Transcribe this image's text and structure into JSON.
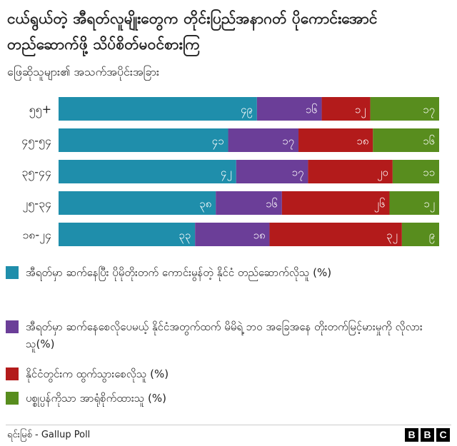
{
  "title": "ငယ်ရွယ်တဲ့ အီရတ်လူမျိုးတွေက တိုင်းပြည်အနာဂတ် ပိုကောင်းအောင် တည်ဆောက်ဖို့ သိပ်စိတ်မဝင်စားကြ",
  "subtitle": "ဖြေဆိုသူများ၏ အသက်အပိုင်းအခြား",
  "colors": [
    "#1f8eab",
    "#6b3e98",
    "#b31b1b",
    "#588d1e"
  ],
  "chart_data": {
    "type": "bar",
    "orientation": "horizontal",
    "stacked": true,
    "categories": [
      "၅၅+",
      "၄၅-၅၄",
      "၃၅-၄၄",
      "၂၅-၃၄",
      "၁၈-၂၄"
    ],
    "series": [
      {
        "name": "အီရတ်မှာ ဆက်နေပြီး ပိုမိုတိုးတက် ကောင်းမွန်တဲ့ နိုင်ငံ တည်ဆောက်လိုသူ (%)",
        "values": [
          49,
          41,
          42,
          38,
          33
        ]
      },
      {
        "name": "အီရတ်မှာ ဆက်နေစေလိုပေမယ့် နိုင်ငံအတွက်ထက် မိမိရဲ့ ဘဝ အခြေအနေ တိုးတက်မြင့်မားမှုကို လိုလားသူ(%)",
        "values": [
          16,
          17,
          17,
          16,
          18
        ]
      },
      {
        "name": "နိုင်ငံတွင်းက ထွက်သွားစေလိုသူ (%)",
        "values": [
          12,
          18,
          20,
          26,
          32
        ]
      },
      {
        "name": "ပစ္စုပ္ပန်ကိုသာ အာရုံစိုက်ထားသူ (%)",
        "values": [
          17,
          16,
          11,
          12,
          9
        ]
      }
    ],
    "data_labels": [
      [
        "၄၉",
        "၁၆",
        "၁၂",
        "၁၇"
      ],
      [
        "၄၁",
        "၁၇",
        "၁၈",
        "၁၆"
      ],
      [
        "၄၂",
        "၁၇",
        "၂၀",
        "၁၁"
      ],
      [
        "၃၈",
        "၁၆",
        "၂၆",
        "၁၂"
      ],
      [
        "၃၃",
        "၁၈",
        "၃၂",
        "၉"
      ]
    ]
  },
  "source": "ရင်းမြစ် - Gallup Poll",
  "logo": [
    "B",
    "B",
    "C"
  ]
}
